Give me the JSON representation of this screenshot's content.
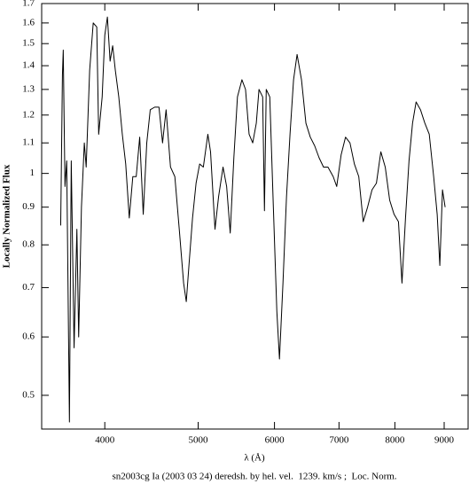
{
  "chart_data": {
    "type": "line",
    "title": "sn2003cg Ia (2003 03 24) deredsh. by hel. vel.  1239. km/s ;  Loc. Norm.",
    "x_label": "λ (Å)",
    "y_label": "Locally Normalized Flux",
    "x_scale": "log",
    "y_scale": "log",
    "color": "#000000",
    "xlim": [
      3440,
      9530
    ],
    "ylim": [
      0.45,
      1.7
    ],
    "xticks": [
      4000,
      5000,
      6000,
      7000,
      8000,
      9000
    ],
    "yticks": [
      0.5,
      0.6,
      0.7,
      0.8,
      0.9,
      1,
      1.1,
      1.2,
      1.3,
      1.4,
      1.5,
      1.6,
      1.7
    ],
    "x": [
      3600,
      3615,
      3622,
      3637,
      3652,
      3676,
      3692,
      3717,
      3742,
      3758,
      3783,
      3809,
      3826,
      3858,
      3891,
      3924,
      3942,
      3975,
      4000,
      4025,
      4051,
      4076,
      4102,
      4136,
      4171,
      4205,
      4241,
      4277,
      4312,
      4348,
      4385,
      4422,
      4459,
      4506,
      4553,
      4592,
      4631,
      4680,
      4729,
      4779,
      4829,
      4860,
      4891,
      4933,
      4975,
      5018,
      5062,
      5117,
      5150,
      5205,
      5250,
      5306,
      5352,
      5398,
      5445,
      5492,
      5551,
      5599,
      5647,
      5696,
      5745,
      5782,
      5833,
      5858,
      5883,
      5933,
      5984,
      6034,
      6072,
      6123,
      6175,
      6227,
      6280,
      6333,
      6400,
      6468,
      6536,
      6605,
      6675,
      6746,
      6818,
      6904,
      6962,
      7036,
      7110,
      7186,
      7262,
      7339,
      7417,
      7495,
      7575,
      7655,
      7736,
      7818,
      7901,
      7985,
      8069,
      8137,
      8206,
      8275,
      8345,
      8416,
      8505,
      8594,
      8685,
      8777,
      8851,
      8907,
      8964,
      9021
    ],
    "y": [
      0.85,
      1.36,
      1.47,
      0.96,
      1.04,
      0.46,
      1.04,
      0.58,
      0.84,
      0.6,
      0.9,
      1.1,
      1.02,
      1.38,
      1.6,
      1.58,
      1.13,
      1.27,
      1.54,
      1.63,
      1.42,
      1.49,
      1.38,
      1.27,
      1.13,
      1.03,
      0.87,
      0.99,
      0.99,
      1.12,
      0.88,
      1.1,
      1.22,
      1.23,
      1.23,
      1.1,
      1.22,
      1.02,
      0.99,
      0.84,
      0.71,
      0.67,
      0.75,
      0.87,
      0.97,
      1.03,
      1.02,
      1.13,
      1.07,
      0.84,
      0.93,
      1.02,
      0.96,
      0.83,
      1.05,
      1.27,
      1.34,
      1.3,
      1.13,
      1.1,
      1.17,
      1.3,
      1.27,
      0.89,
      1.3,
      1.27,
      0.9,
      0.65,
      0.56,
      0.71,
      0.93,
      1.13,
      1.34,
      1.45,
      1.34,
      1.17,
      1.12,
      1.09,
      1.05,
      1.02,
      1.02,
      0.99,
      0.96,
      1.06,
      1.12,
      1.1,
      1.03,
      0.99,
      0.86,
      0.9,
      0.95,
      0.97,
      1.07,
      1.02,
      0.92,
      0.88,
      0.86,
      0.71,
      0.87,
      1.04,
      1.17,
      1.25,
      1.22,
      1.17,
      1.13,
      0.99,
      0.88,
      0.75,
      0.95,
      0.9
    ]
  }
}
